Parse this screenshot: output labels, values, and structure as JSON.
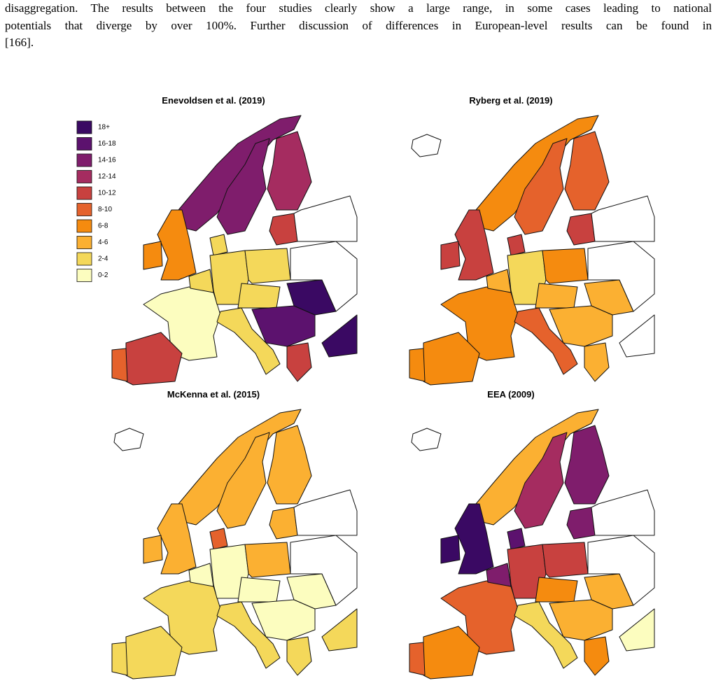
{
  "paragraph": {
    "lines": [
      "disaggregation. The results between the four studies clearly show a large range, in some cases leading to national",
      "potentials that diverge by over 100%. Further discussion of differences in European-level results can be found in",
      "[166]."
    ]
  },
  "figure": {
    "panels": [
      {
        "title": "Enevoldsen et al. (2019)"
      },
      {
        "title": "Ryberg et al. (2019)"
      },
      {
        "title": "McKenna et al. (2015)"
      },
      {
        "title": "EEA (2009)"
      }
    ],
    "legend": {
      "items": [
        {
          "label": "18+",
          "color": "#3a0963"
        },
        {
          "label": "16-18",
          "color": "#5c126e"
        },
        {
          "label": "14-16",
          "color": "#7f1d6c"
        },
        {
          "label": "12-14",
          "color": "#a52c60"
        },
        {
          "label": "10-12",
          "color": "#c8413f"
        },
        {
          "label": "8-10",
          "color": "#e5622c"
        },
        {
          "label": "6-8",
          "color": "#f58b0f"
        },
        {
          "label": "4-6",
          "color": "#fbb032"
        },
        {
          "label": "2-4",
          "color": "#f4d85a"
        },
        {
          "label": "0-2",
          "color": "#fcfdbf"
        }
      ]
    }
  }
}
